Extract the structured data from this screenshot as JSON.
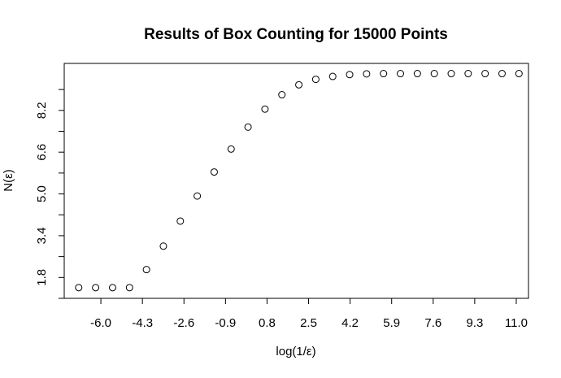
{
  "chart_data": {
    "type": "scatter",
    "title": "Results of Box Counting for 15000 Points",
    "xlabel": "log(1/ε)",
    "ylabel": "N(ε)",
    "xlim": [
      -7.5,
      11.5
    ],
    "ylim": [
      1.0,
      10.0
    ],
    "x_ticks": [
      -6.0,
      -4.3,
      -2.6,
      -0.9,
      0.8,
      2.5,
      4.2,
      5.9,
      7.6,
      9.3,
      11.0
    ],
    "x_tick_labels": [
      "-6.0",
      "-4.3",
      "-2.6",
      "-0.9",
      "0.8",
      "2.5",
      "4.2",
      "5.9",
      "7.6",
      "9.3",
      "11.0"
    ],
    "y_ticks": [
      1.0,
      1.8,
      2.6,
      3.4,
      4.2,
      5.0,
      5.8,
      6.6,
      7.4,
      8.2,
      9.0
    ],
    "y_tick_labels": [
      "",
      "1.8",
      "",
      "3.4",
      "",
      "5.0",
      "",
      "6.6",
      "",
      "8.2",
      ""
    ],
    "grid": false,
    "marker": "open-circle",
    "series": [
      {
        "x": [
          -6.908,
          -6.215,
          -5.521,
          -4.828,
          -4.135,
          -3.442,
          -2.749,
          -2.056,
          -1.363,
          -0.67,
          0.023,
          0.716,
          1.409,
          2.102,
          2.795,
          3.488,
          4.181,
          4.874,
          5.567,
          6.26,
          6.953,
          7.646,
          8.339,
          9.032,
          9.725,
          10.418,
          11.111
        ],
        "y": [
          1.41,
          1.41,
          1.41,
          1.41,
          2.1,
          3.0,
          3.96,
          4.92,
          5.84,
          6.72,
          7.56,
          8.25,
          8.8,
          9.18,
          9.39,
          9.5,
          9.57,
          9.6,
          9.61,
          9.61,
          9.61,
          9.61,
          9.61,
          9.61,
          9.61,
          9.61,
          9.61
        ]
      }
    ]
  }
}
